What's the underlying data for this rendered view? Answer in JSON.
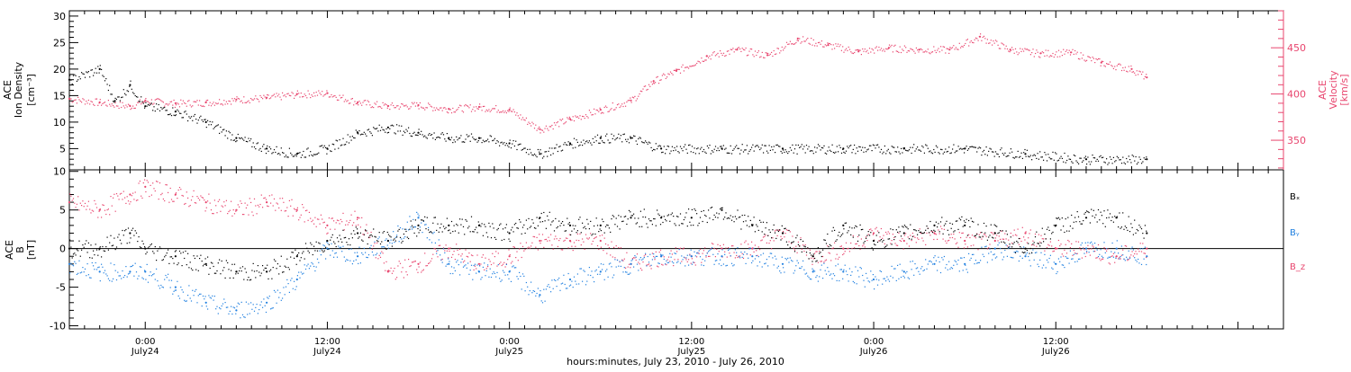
{
  "colors": {
    "density": "#000000",
    "velocity": "#e8456e",
    "bx": "#000000",
    "by": "#1f7fe0",
    "bz": "#e8456e"
  },
  "top_panel": {
    "left_axis_label": [
      "ACE",
      "Ion Density",
      "[cm⁻³]"
    ],
    "right_axis_label": [
      "ACE",
      "Velocity",
      "[km/s]"
    ],
    "left_ticks": [
      "5",
      "10",
      "15",
      "20",
      "25",
      "30"
    ],
    "right_ticks": [
      "350",
      "400",
      "450"
    ]
  },
  "bottom_panel": {
    "left_axis_label": [
      "ACE",
      "B",
      "[nT]"
    ],
    "left_ticks": [
      "-10",
      "-5",
      "0",
      "5",
      "10"
    ],
    "legend": [
      "Bₓ",
      "Bᵧ",
      "B_z"
    ]
  },
  "x_ticks": [
    {
      "time": "0:00",
      "date": "July24"
    },
    {
      "time": "12:00",
      "date": "July24"
    },
    {
      "time": "0:00",
      "date": "July25"
    },
    {
      "time": "12:00",
      "date": "July25"
    },
    {
      "time": "0:00",
      "date": "July26"
    },
    {
      "time": "12:00",
      "date": "July26"
    }
  ],
  "x_title": "hours:minutes, July 23, 2010 - July 26, 2010",
  "chart_data": [
    {
      "type": "scatter",
      "xlabel": "hours:minutes, July 23, 2010 - July 26, 2010",
      "xlim": [
        "2010-07-23 19:00",
        "2010-07-27 03:00"
      ],
      "ylabel": "ACE Ion Density [cm⁻³]",
      "ylim": [
        1,
        31
      ],
      "y2label": "ACE Velocity [km/s]",
      "y2lim": [
        318,
        490
      ],
      "series": [
        {
          "name": "ACE Ion Density",
          "axis": "left",
          "points": [
            [
              "2010-07-23 19:00",
              18
            ],
            [
              "2010-07-23 21:00",
              20
            ],
            [
              "2010-07-23 22:00",
              14
            ],
            [
              "2010-07-23 23:00",
              17
            ],
            [
              "2010-07-24 00:00",
              13
            ],
            [
              "2010-07-24 02:00",
              12
            ],
            [
              "2010-07-24 04:00",
              10
            ],
            [
              "2010-07-24 06:00",
              7
            ],
            [
              "2010-07-24 08:00",
              5
            ],
            [
              "2010-07-24 10:00",
              4
            ],
            [
              "2010-07-24 12:00",
              5
            ],
            [
              "2010-07-24 14:00",
              8
            ],
            [
              "2010-07-24 16:00",
              9
            ],
            [
              "2010-07-24 18:00",
              8
            ],
            [
              "2010-07-24 20:00",
              7
            ],
            [
              "2010-07-24 22:00",
              7
            ],
            [
              "2010-07-25 00:00",
              6
            ],
            [
              "2010-07-25 02:00",
              4
            ],
            [
              "2010-07-25 04:00",
              6
            ],
            [
              "2010-07-25 06:00",
              7
            ],
            [
              "2010-07-25 08:00",
              7
            ],
            [
              "2010-07-25 10:00",
              5
            ],
            [
              "2010-07-25 14:00",
              5
            ],
            [
              "2010-07-25 18:00",
              5
            ],
            [
              "2010-07-25 22:00",
              5
            ],
            [
              "2010-07-26 02:00",
              5
            ],
            [
              "2010-07-26 06:00",
              5
            ],
            [
              "2010-07-26 10:00",
              4
            ],
            [
              "2010-07-26 14:00",
              3
            ],
            [
              "2010-07-26 18:00",
              3
            ]
          ]
        },
        {
          "name": "ACE Velocity",
          "axis": "right",
          "points": [
            [
              "2010-07-23 19:00",
              395
            ],
            [
              "2010-07-23 21:00",
              391
            ],
            [
              "2010-07-23 23:00",
              387
            ],
            [
              "2010-07-24 00:00",
              393
            ],
            [
              "2010-07-24 02:00",
              390
            ],
            [
              "2010-07-24 04:00",
              391
            ],
            [
              "2010-07-24 06:00",
              394
            ],
            [
              "2010-07-24 08:00",
              396
            ],
            [
              "2010-07-24 10:00",
              400
            ],
            [
              "2010-07-24 12:00",
              401
            ],
            [
              "2010-07-24 14:00",
              391
            ],
            [
              "2010-07-24 16:00",
              387
            ],
            [
              "2010-07-24 18:00",
              388
            ],
            [
              "2010-07-24 20:00",
              384
            ],
            [
              "2010-07-24 22:00",
              386
            ],
            [
              "2010-07-25 00:00",
              383
            ],
            [
              "2010-07-25 02:00",
              362
            ],
            [
              "2010-07-25 04:00",
              373
            ],
            [
              "2010-07-25 06:00",
              383
            ],
            [
              "2010-07-25 08:00",
              393
            ],
            [
              "2010-07-25 09:30",
              414
            ],
            [
              "2010-07-25 11:00",
              425
            ],
            [
              "2010-07-25 13:00",
              441
            ],
            [
              "2010-07-25 15:00",
              448
            ],
            [
              "2010-07-25 17:00",
              442
            ],
            [
              "2010-07-25 19:00",
              460
            ],
            [
              "2010-07-25 21:00",
              453
            ],
            [
              "2010-07-25 23:00",
              446
            ],
            [
              "2010-07-26 01:00",
              450
            ],
            [
              "2010-07-26 03:00",
              448
            ],
            [
              "2010-07-26 05:00",
              448
            ],
            [
              "2010-07-26 07:00",
              462
            ],
            [
              "2010-07-26 09:00",
              448
            ],
            [
              "2010-07-26 11:00",
              444
            ],
            [
              "2010-07-26 13:00",
              445
            ],
            [
              "2010-07-26 15:00",
              434
            ],
            [
              "2010-07-26 17:00",
              427
            ],
            [
              "2010-07-26 18:00",
              418
            ]
          ]
        }
      ]
    },
    {
      "type": "scatter",
      "xlabel": "hours:minutes, July 23, 2010 - July 26, 2010",
      "xlim": [
        "2010-07-23 19:00",
        "2010-07-27 03:00"
      ],
      "ylabel": "ACE B [nT]",
      "ylim": [
        -10.4,
        10.2
      ],
      "zero_line": true,
      "series": [
        {
          "name": "Bₓ",
          "points": [
            [
              "2010-07-23 19:00",
              0
            ],
            [
              "2010-07-23 21:00",
              0
            ],
            [
              "2010-07-23 23:00",
              2
            ],
            [
              "2010-07-24 00:00",
              0
            ],
            [
              "2010-07-24 02:00",
              -1
            ],
            [
              "2010-07-24 04:00",
              -2
            ],
            [
              "2010-07-24 06:00",
              -3
            ],
            [
              "2010-07-24 08:00",
              -3
            ],
            [
              "2010-07-24 10:00",
              -1
            ],
            [
              "2010-07-24 12:00",
              1
            ],
            [
              "2010-07-24 14:00",
              2
            ],
            [
              "2010-07-24 16:00",
              1
            ],
            [
              "2010-07-24 18:00",
              3
            ],
            [
              "2010-07-24 20:00",
              3
            ],
            [
              "2010-07-24 22:00",
              3
            ],
            [
              "2010-07-25 00:00",
              2
            ],
            [
              "2010-07-25 02:00",
              4
            ],
            [
              "2010-07-25 04:00",
              3
            ],
            [
              "2010-07-25 06:00",
              3
            ],
            [
              "2010-07-25 08:00",
              4
            ],
            [
              "2010-07-25 10:00",
              4
            ],
            [
              "2010-07-25 12:00",
              4
            ],
            [
              "2010-07-25 14:00",
              5
            ],
            [
              "2010-07-25 16:00",
              3
            ],
            [
              "2010-07-25 18:00",
              2
            ],
            [
              "2010-07-25 20:00",
              -1
            ],
            [
              "2010-07-25 22:00",
              3
            ],
            [
              "2010-07-26 00:00",
              1
            ],
            [
              "2010-07-26 02:00",
              2
            ],
            [
              "2010-07-26 04:00",
              3
            ],
            [
              "2010-07-26 06:00",
              3
            ],
            [
              "2010-07-26 08:00",
              2
            ],
            [
              "2010-07-26 10:00",
              0
            ],
            [
              "2010-07-26 12:00",
              3
            ],
            [
              "2010-07-26 14:00",
              4
            ],
            [
              "2010-07-26 16:00",
              4
            ],
            [
              "2010-07-26 18:00",
              2
            ]
          ]
        },
        {
          "name": "Bᵧ",
          "points": [
            [
              "2010-07-23 19:00",
              -2
            ],
            [
              "2010-07-23 21:00",
              -3
            ],
            [
              "2010-07-23 23:00",
              -3
            ],
            [
              "2010-07-24 00:00",
              -3
            ],
            [
              "2010-07-24 02:00",
              -5
            ],
            [
              "2010-07-24 04:00",
              -7
            ],
            [
              "2010-07-24 06:00",
              -8
            ],
            [
              "2010-07-24 08:00",
              -7
            ],
            [
              "2010-07-24 10:00",
              -4
            ],
            [
              "2010-07-24 12:00",
              0
            ],
            [
              "2010-07-24 14:00",
              -1
            ],
            [
              "2010-07-24 16:00",
              1
            ],
            [
              "2010-07-24 18:00",
              4
            ],
            [
              "2010-07-24 20:00",
              -2
            ],
            [
              "2010-07-24 22:00",
              -3
            ],
            [
              "2010-07-25 00:00",
              -3
            ],
            [
              "2010-07-25 02:00",
              -6
            ],
            [
              "2010-07-25 04:00",
              -4
            ],
            [
              "2010-07-25 06:00",
              -3
            ],
            [
              "2010-07-25 08:00",
              -2
            ],
            [
              "2010-07-25 10:00",
              -1
            ],
            [
              "2010-07-25 12:00",
              -1
            ],
            [
              "2010-07-25 14:00",
              -1
            ],
            [
              "2010-07-25 16:00",
              -1
            ],
            [
              "2010-07-25 18:00",
              -2
            ],
            [
              "2010-07-25 20:00",
              -3
            ],
            [
              "2010-07-25 22:00",
              -3
            ],
            [
              "2010-07-26 00:00",
              -4
            ],
            [
              "2010-07-26 02:00",
              -3
            ],
            [
              "2010-07-26 04:00",
              -2
            ],
            [
              "2010-07-26 06:00",
              -2
            ],
            [
              "2010-07-26 08:00",
              0
            ],
            [
              "2010-07-26 10:00",
              -1
            ],
            [
              "2010-07-26 12:00",
              -2
            ],
            [
              "2010-07-26 14:00",
              0
            ],
            [
              "2010-07-26 16:00",
              0
            ],
            [
              "2010-07-26 18:00",
              -1
            ]
          ]
        },
        {
          "name": "B_z",
          "points": [
            [
              "2010-07-23 19:00",
              6
            ],
            [
              "2010-07-23 21:00",
              5
            ],
            [
              "2010-07-23 23:00",
              7
            ],
            [
              "2010-07-24 00:00",
              8
            ],
            [
              "2010-07-24 02:00",
              7
            ],
            [
              "2010-07-24 04:00",
              6
            ],
            [
              "2010-07-24 06:00",
              5
            ],
            [
              "2010-07-24 08:00",
              6
            ],
            [
              "2010-07-24 10:00",
              5
            ],
            [
              "2010-07-24 12:00",
              3
            ],
            [
              "2010-07-24 14:00",
              4
            ],
            [
              "2010-07-24 16:00",
              -3
            ],
            [
              "2010-07-24 18:00",
              -2
            ],
            [
              "2010-07-24 20:00",
              0
            ],
            [
              "2010-07-24 22:00",
              -2
            ],
            [
              "2010-07-25 00:00",
              -1
            ],
            [
              "2010-07-25 02:00",
              1
            ],
            [
              "2010-07-25 04:00",
              1
            ],
            [
              "2010-07-25 06:00",
              1
            ],
            [
              "2010-07-25 08:00",
              -2
            ],
            [
              "2010-07-25 10:00",
              -1
            ],
            [
              "2010-07-25 12:00",
              -1
            ],
            [
              "2010-07-25 14:00",
              0
            ],
            [
              "2010-07-25 16:00",
              0
            ],
            [
              "2010-07-25 18:00",
              2
            ],
            [
              "2010-07-25 20:00",
              -1
            ],
            [
              "2010-07-25 22:00",
              0
            ],
            [
              "2010-07-26 00:00",
              2
            ],
            [
              "2010-07-26 02:00",
              1
            ],
            [
              "2010-07-26 04:00",
              2
            ],
            [
              "2010-07-26 06:00",
              1
            ],
            [
              "2010-07-26 08:00",
              1
            ],
            [
              "2010-07-26 10:00",
              2
            ],
            [
              "2010-07-26 12:00",
              0
            ],
            [
              "2010-07-26 14:00",
              0
            ],
            [
              "2010-07-26 16:00",
              -1
            ],
            [
              "2010-07-26 18:00",
              0
            ]
          ]
        }
      ]
    }
  ]
}
